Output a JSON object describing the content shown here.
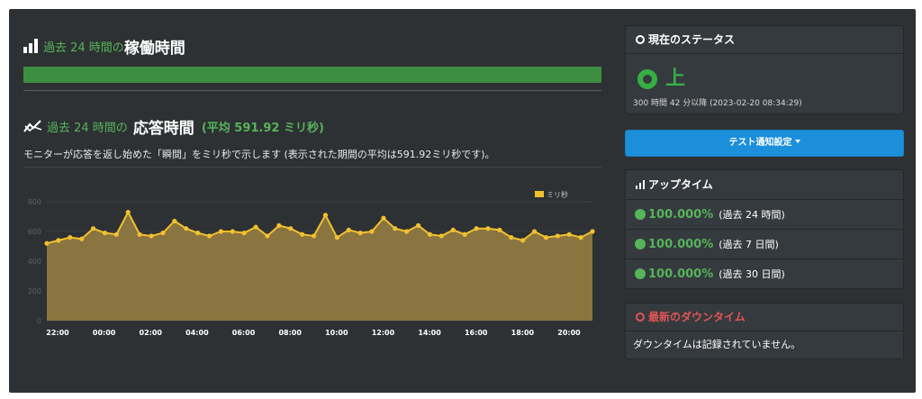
{
  "uptime_section": {
    "prefix": "過去 24 時間の",
    "title": "稼働時間",
    "bar_fraction": 1.0
  },
  "response_section": {
    "prefix": "過去 24 時間の",
    "title": "応答時間",
    "average": "(平均 591.92 ミリ秒)",
    "description": "モニターが応答を返し始めた「瞬間」をミリ秒で示します (表示された期間の平均は591.92ミリ秒です)。"
  },
  "status_panel": {
    "heading": "現在のステータス",
    "status": "上",
    "since": "300 時間 42 分以降 (2023-02-20 08:34:29)"
  },
  "notify_button": {
    "label": "テスト通知設定"
  },
  "uptime_panel": {
    "heading": "アップタイム",
    "rows": [
      {
        "value": "100.000%",
        "period": "(過去 24 時間)"
      },
      {
        "value": "100.000%",
        "period": "(過去 7 日間)"
      },
      {
        "value": "100.000%",
        "period": "(過去 30 日間)"
      }
    ]
  },
  "downtime_panel": {
    "heading": "最新のダウンタイム",
    "message": "ダウンタイムは記録されていません。"
  },
  "colors": {
    "accent_green": "#56b45a",
    "status_green": "#35b044",
    "button_blue": "#1c8fdb",
    "danger_red": "#e05555",
    "series_fill": "#8a7440",
    "series_line": "#f2c12e"
  },
  "chart_data": {
    "type": "area",
    "legend": "ミリ秒",
    "legend_position": "top-right",
    "ylim": [
      0,
      800
    ],
    "yticks": [
      0,
      200,
      400,
      600,
      800
    ],
    "xticks": [
      "22:00",
      "00:00",
      "02:00",
      "04:00",
      "06:00",
      "08:00",
      "10:00",
      "12:00",
      "14:00",
      "16:00",
      "18:00",
      "20:00"
    ],
    "grid": true,
    "values": [
      520,
      540,
      560,
      550,
      620,
      590,
      580,
      730,
      580,
      570,
      590,
      670,
      620,
      590,
      570,
      600,
      600,
      590,
      630,
      570,
      640,
      620,
      580,
      570,
      710,
      560,
      610,
      590,
      600,
      690,
      620,
      600,
      640,
      580,
      570,
      610,
      580,
      620,
      620,
      610,
      560,
      540,
      600,
      560,
      570,
      580,
      560,
      600
    ]
  }
}
